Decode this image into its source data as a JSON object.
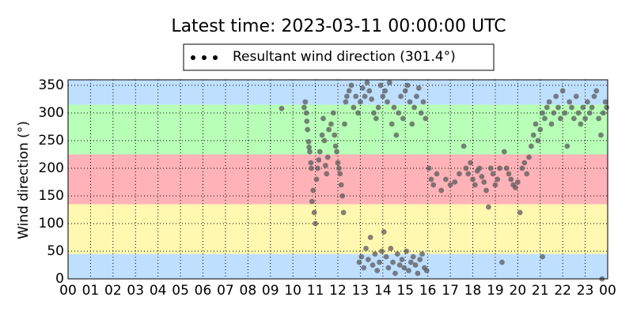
{
  "chart_data": {
    "type": "scatter",
    "title": "Latest time: 2023-03-11 00:00:00 UTC",
    "y_label": "Wind direction (°)",
    "xlim": [
      0,
      24
    ],
    "ylim": [
      0,
      360
    ],
    "xticks": [
      {
        "value": 0,
        "label": "00"
      },
      {
        "value": 1,
        "label": "01"
      },
      {
        "value": 2,
        "label": "02"
      },
      {
        "value": 3,
        "label": "03"
      },
      {
        "value": 4,
        "label": "04"
      },
      {
        "value": 5,
        "label": "05"
      },
      {
        "value": 6,
        "label": "06"
      },
      {
        "value": 7,
        "label": "07"
      },
      {
        "value": 8,
        "label": "08"
      },
      {
        "value": 9,
        "label": "09"
      },
      {
        "value": 10,
        "label": "10"
      },
      {
        "value": 11,
        "label": "11"
      },
      {
        "value": 12,
        "label": "12"
      },
      {
        "value": 13,
        "label": "13"
      },
      {
        "value": 14,
        "label": "14"
      },
      {
        "value": 15,
        "label": "15"
      },
      {
        "value": 16,
        "label": "16"
      },
      {
        "value": 17,
        "label": "17"
      },
      {
        "value": 18,
        "label": "18"
      },
      {
        "value": 19,
        "label": "19"
      },
      {
        "value": 20,
        "label": "20"
      },
      {
        "value": 21,
        "label": "21"
      },
      {
        "value": 22,
        "label": "22"
      },
      {
        "value": 23,
        "label": "23"
      },
      {
        "value": 24,
        "label": "00"
      }
    ],
    "yticks": [
      0,
      50,
      100,
      150,
      200,
      250,
      300,
      350
    ],
    "grid": true,
    "legend": "upper center outside",
    "bands": [
      {
        "from": 0,
        "to": 45,
        "color": "#bfdfff"
      },
      {
        "from": 45,
        "to": 135,
        "color": "#fff8b0"
      },
      {
        "from": 135,
        "to": 225,
        "color": "#ffb3b8"
      },
      {
        "from": 225,
        "to": 315,
        "color": "#b8ffb8"
      },
      {
        "from": 315,
        "to": 360,
        "color": "#bfdfff"
      }
    ],
    "series": [
      {
        "name": "Resultant wind direction (301.4°)",
        "color": "#5a5a5a",
        "x": [
          9.5,
          10.5,
          10.55,
          10.6,
          10.62,
          10.65,
          10.7,
          10.72,
          10.75,
          10.8,
          10.82,
          10.85,
          10.9,
          10.95,
          11.0,
          11.05,
          11.1,
          11.15,
          11.2,
          11.3,
          11.35,
          11.4,
          11.45,
          11.5,
          11.55,
          11.6,
          11.7,
          11.8,
          11.85,
          11.9,
          11.95,
          12.0,
          12.05,
          12.1,
          12.15,
          12.2,
          12.25,
          12.3,
          12.35,
          12.4,
          12.5,
          12.6,
          12.7,
          12.8,
          12.9,
          13.0,
          13.1,
          13.2,
          13.3,
          13.4,
          13.5,
          13.6,
          13.7,
          13.8,
          13.9,
          14.0,
          14.1,
          14.2,
          14.3,
          14.4,
          14.5,
          14.6,
          14.7,
          14.8,
          14.9,
          15.0,
          15.1,
          15.2,
          15.3,
          15.4,
          15.5,
          15.6,
          15.7,
          15.8,
          15.9,
          12.95,
          13.05,
          13.15,
          13.25,
          13.35,
          13.45,
          13.55,
          13.65,
          13.75,
          13.85,
          13.95,
          14.05,
          14.15,
          14.25,
          14.35,
          14.45,
          14.55,
          14.65,
          14.75,
          14.85,
          14.95,
          15.05,
          15.15,
          15.25,
          15.35,
          15.45,
          15.55,
          15.65,
          15.75,
          15.85,
          15.95,
          16.05,
          16.15,
          16.25,
          16.4,
          16.6,
          16.8,
          17.0,
          17.2,
          17.4,
          17.6,
          17.7,
          17.8,
          17.9,
          18.0,
          18.1,
          18.2,
          18.3,
          18.4,
          18.5,
          18.6,
          18.7,
          18.8,
          18.9,
          19.0,
          19.1,
          19.2,
          19.3,
          19.4,
          19.5,
          19.6,
          19.7,
          19.8,
          19.9,
          20.0,
          20.1,
          20.2,
          20.3,
          20.4,
          20.5,
          20.6,
          20.7,
          20.8,
          20.9,
          21.0,
          21.1,
          21.2,
          21.3,
          21.4,
          21.5,
          21.6,
          21.7,
          21.8,
          21.9,
          22.0,
          22.1,
          22.2,
          22.3,
          22.4,
          22.5,
          22.6,
          22.7,
          22.8,
          22.9,
          23.0,
          23.1,
          23.2,
          23.3,
          23.4,
          23.5,
          23.6,
          23.7,
          23.8,
          23.9,
          23.95,
          21.1,
          23.75
        ],
        "values": [
          308,
          310,
          320,
          300,
          285,
          270,
          248,
          238,
          230,
          210,
          200,
          140,
          160,
          120,
          100,
          180,
          200,
          215,
          230,
          260,
          290,
          250,
          205,
          190,
          220,
          270,
          280,
          300,
          260,
          240,
          230,
          210,
          200,
          190,
          170,
          150,
          120,
          280,
          320,
          330,
          340,
          350,
          310,
          330,
          300,
          320,
          345,
          330,
          355,
          340,
          325,
          300,
          290,
          310,
          350,
          330,
          340,
          320,
          355,
          280,
          310,
          260,
          300,
          330,
          290,
          340,
          350,
          320,
          280,
          310,
          330,
          345,
          300,
          320,
          290,
          30,
          40,
          20,
          55,
          35,
          75,
          25,
          45,
          15,
          30,
          50,
          85,
          40,
          20,
          55,
          30,
          10,
          45,
          25,
          35,
          20,
          50,
          15,
          30,
          40,
          25,
          10,
          35,
          45,
          20,
          15,
          200,
          180,
          170,
          190,
          160,
          180,
          170,
          175,
          190,
          240,
          200,
          190,
          210,
          180,
          170,
          195,
          200,
          185,
          175,
          160,
          130,
          200,
          190,
          170,
          180,
          200,
          30,
          230,
          200,
          190,
          180,
          170,
          165,
          175,
          120,
          200,
          210,
          190,
          220,
          240,
          260,
          280,
          250,
          270,
          300,
          290,
          310,
          320,
          280,
          300,
          330,
          310,
          290,
          340,
          300,
          240,
          320,
          310,
          290,
          330,
          300,
          280,
          310,
          290,
          320,
          300,
          310,
          330,
          340,
          290,
          260,
          300,
          320,
          310,
          40,
          0
        ]
      }
    ]
  }
}
